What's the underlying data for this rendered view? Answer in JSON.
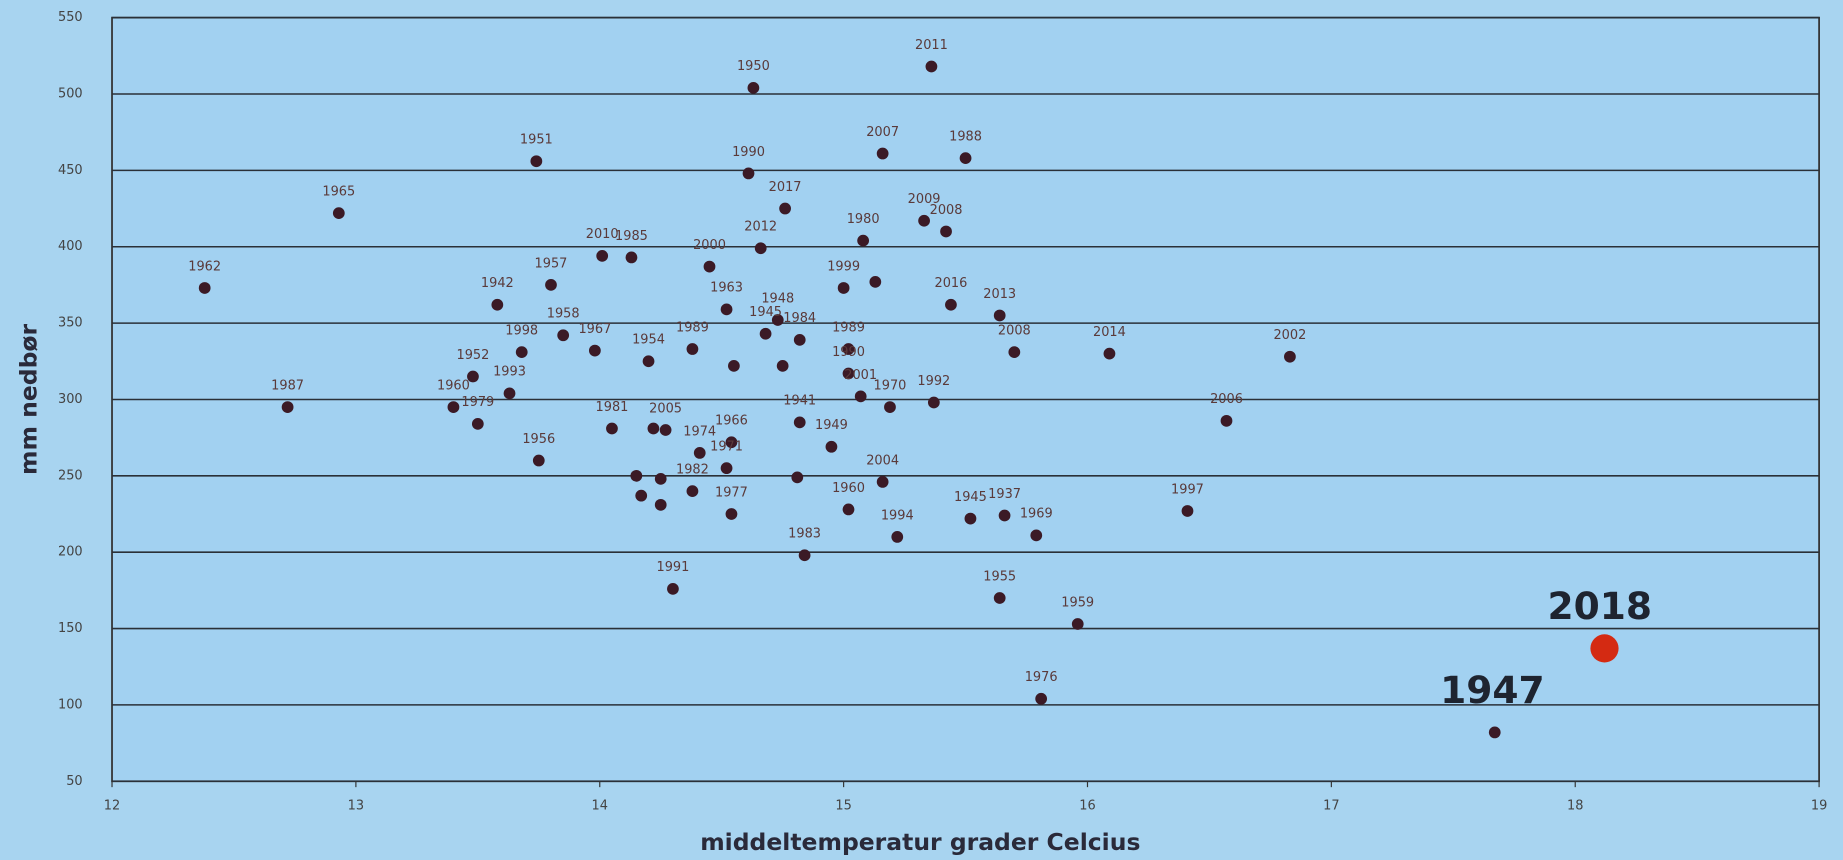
{
  "chart_data": {
    "type": "scatter",
    "x_label": "middeltemperatur grader Celcius",
    "y_label": "mm nedbør",
    "xlim": [
      12,
      19
    ],
    "ylim": [
      50,
      550
    ],
    "xticks": [
      12,
      13,
      14,
      15,
      16,
      17,
      18,
      19
    ],
    "yticks": [
      50,
      100,
      150,
      200,
      250,
      300,
      350,
      400,
      450,
      500,
      550
    ],
    "grid": true,
    "series": [
      {
        "color": "#3b1a26",
        "x": [
          15.36,
          14.63,
          13.74,
          14.61,
          15.16,
          15.5,
          14.76,
          12.93,
          15.33,
          15.42,
          15.08,
          14.66,
          14.01,
          14.13,
          14.45,
          12.38,
          13.8,
          15.0,
          15.13,
          14.52,
          13.58,
          15.44,
          15.64,
          14.73,
          13.85,
          13.68,
          13.98,
          14.82,
          14.68,
          14.38,
          14.2,
          15.02,
          15.7,
          16.09,
          16.83,
          13.48,
          13.63,
          12.72,
          13.4,
          13.5,
          14.55,
          14.75,
          15.02,
          15.07,
          15.19,
          15.37,
          14.05,
          14.22,
          14.27,
          14.82,
          14.95,
          14.54,
          13.75,
          14.41,
          14.38,
          14.52,
          15.02,
          15.16,
          14.54,
          15.22,
          14.84,
          15.52,
          15.66,
          15.79,
          16.41,
          16.57,
          14.3,
          15.64,
          15.96,
          15.81,
          14.15,
          14.17,
          14.25,
          14.25,
          14.81
        ],
        "values": [
          518,
          504,
          456,
          448,
          461,
          458,
          425,
          422,
          417,
          410,
          404,
          399,
          394,
          393,
          387,
          373,
          375,
          373,
          377,
          359,
          362,
          362,
          355,
          352,
          342,
          331,
          332,
          339,
          343,
          333,
          325,
          333,
          331,
          330,
          328,
          315,
          304,
          295,
          295,
          284,
          322,
          322,
          317,
          302,
          295,
          298,
          281,
          281,
          280,
          285,
          269,
          272,
          260,
          265,
          240,
          255,
          228,
          246,
          225,
          210,
          198,
          222,
          224,
          211,
          227,
          286,
          176,
          170,
          153,
          104,
          250,
          237,
          231,
          248,
          249
        ],
        "labels": [
          "2011",
          "1950",
          "1951",
          "1990",
          "2007",
          "1988",
          "2017",
          "1965",
          "2009",
          "2008",
          "1980",
          "2012",
          "2010",
          "1985",
          "2000",
          "1962",
          "1957",
          "1999",
          null,
          "1963",
          "1942",
          "2016",
          "2013",
          "1948",
          "1958",
          "1998",
          "1967",
          "1984",
          "1945",
          "1989",
          "1954",
          "1989",
          "2008",
          "2014",
          "2002",
          "1952",
          "1993",
          "1987",
          "1960",
          "1979",
          null,
          null,
          "1990",
          "2001",
          "1970",
          "1992",
          "1981",
          null,
          "2005",
          "1941",
          "1949",
          "1966",
          "1956",
          "1974",
          "1982",
          "1971",
          "1960",
          "2004",
          "1977",
          "1994",
          "1983",
          "1945",
          "1937",
          "1969",
          "1997",
          "2006",
          "1991",
          "1955",
          "1959",
          "1976",
          null,
          null,
          null,
          null,
          null
        ]
      },
      {
        "color": "#3b1a26",
        "x": [
          17.67
        ],
        "values": [
          82
        ],
        "labels": [
          "1947"
        ]
      },
      {
        "color": "#d42a12",
        "x": [
          18.12
        ],
        "values": [
          137
        ],
        "labels": [
          "2018"
        ]
      }
    ]
  }
}
